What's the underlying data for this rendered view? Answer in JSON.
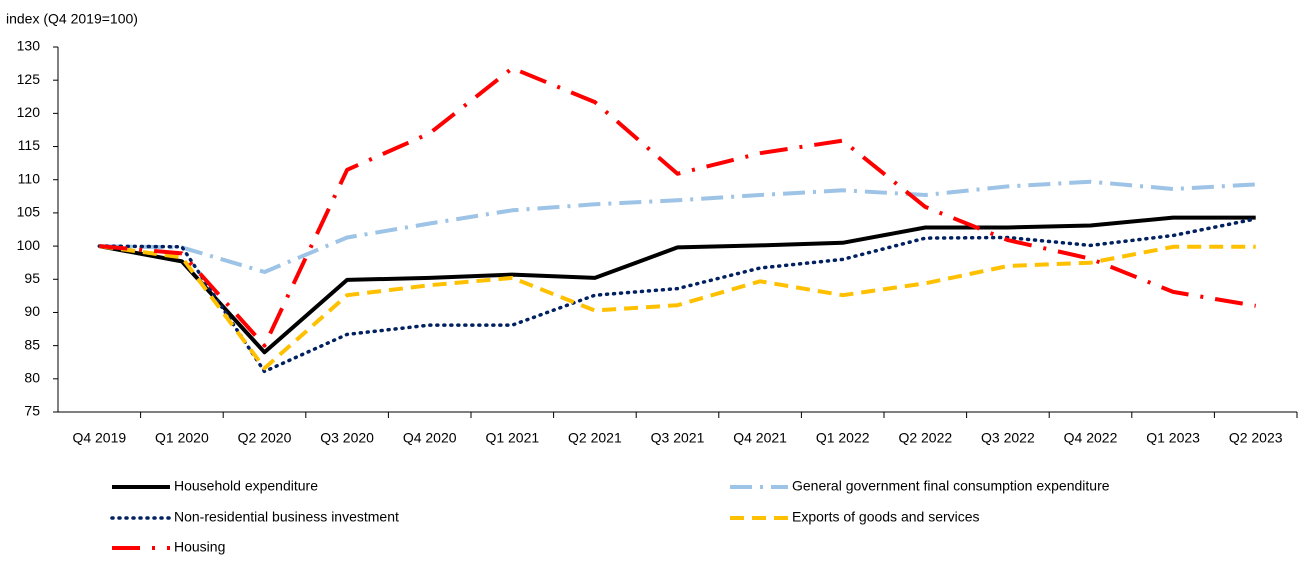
{
  "chart_data": {
    "type": "line",
    "y_label": "index (Q4 2019=100)",
    "categories": [
      "Q4 2019",
      "Q1 2020",
      "Q2 2020",
      "Q3 2020",
      "Q4 2020",
      "Q1 2021",
      "Q2 2021",
      "Q3 2021",
      "Q4 2021",
      "Q1 2022",
      "Q2 2022",
      "Q3 2022",
      "Q4 2022",
      "Q1 2023",
      "Q2 2023"
    ],
    "series": [
      {
        "name": "Household expenditure",
        "color": "#000000",
        "values": [
          100,
          97.7,
          84,
          94.9,
          95.2,
          95.7,
          95.2,
          99.8,
          100.1,
          100.5,
          102.8,
          102.8,
          103.1,
          104.3,
          104.3
        ]
      },
      {
        "name": "General government final consumption expenditure",
        "color": "#9dc3e6",
        "values": [
          100,
          99.8,
          96.1,
          101.3,
          103.4,
          105.4,
          106.3,
          106.9,
          107.7,
          108.4,
          107.7,
          109.0,
          109.7,
          108.6,
          109.3
        ]
      },
      {
        "name": "Non-residential business investment",
        "color": "#002060",
        "values": [
          100,
          99.9,
          81.1,
          86.7,
          88.1,
          88.1,
          92.6,
          93.6,
          96.7,
          98.0,
          101.2,
          101.3,
          100.1,
          101.6,
          104.1
        ]
      },
      {
        "name": "Exports of goods and services",
        "color": "#ffc000",
        "values": [
          100,
          98.3,
          81.6,
          92.6,
          94.1,
          95.2,
          90.3,
          91.1,
          94.7,
          92.6,
          94.4,
          97.0,
          97.5,
          99.9,
          99.9
        ]
      },
      {
        "name": "Housing",
        "color": "#ff0000",
        "values": [
          100,
          98.9,
          85.0,
          111.5,
          117.0,
          126.8,
          121.7,
          110.9,
          114.0,
          115.9,
          105.9,
          100.9,
          98.1,
          93.1,
          91.0
        ]
      }
    ],
    "ylim": [
      75,
      130
    ],
    "yticks": [
      75,
      80,
      85,
      90,
      95,
      100,
      105,
      110,
      115,
      120,
      125,
      130
    ],
    "grid": false
  }
}
